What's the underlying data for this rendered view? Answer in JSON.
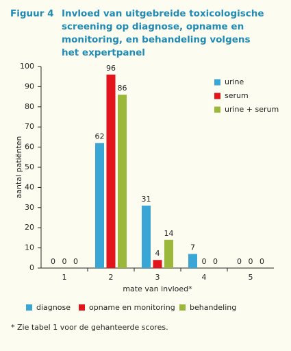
{
  "figure_label": "Figuur 4",
  "chart_data": {
    "type": "bar",
    "title": "Invloed van uitgebreide toxicologische screening op diagnose, opname en monitoring, en behandeling volgens het expertpanel",
    "x_label": "mate van invloed*",
    "y_label": "aantal patiënten",
    "categories": [
      "1",
      "2",
      "3",
      "4",
      "5"
    ],
    "series": [
      {
        "name": "urine",
        "color": "#3aa6d6",
        "values": [
          0,
          62,
          31,
          7,
          0
        ]
      },
      {
        "name": "serum",
        "color": "#e2141c",
        "values": [
          0,
          96,
          4,
          0,
          0
        ]
      },
      {
        "name": "urine + serum",
        "color": "#9bb83a",
        "values": [
          0,
          86,
          14,
          0,
          0
        ]
      }
    ],
    "ylim": [
      0,
      100
    ],
    "yticks": [
      0,
      10,
      20,
      30,
      40,
      50,
      60,
      70,
      80,
      90,
      100
    ],
    "grid": false,
    "legend": "top-right",
    "bottom_legend": [
      {
        "label": "diagnose",
        "color": "#3aa6d6"
      },
      {
        "label": "opname en monitoring",
        "color": "#e2141c"
      },
      {
        "label": "behandeling",
        "color": "#9bb83a"
      }
    ],
    "footnote": "* Zie tabel 1 voor de gehanteerde scores."
  }
}
